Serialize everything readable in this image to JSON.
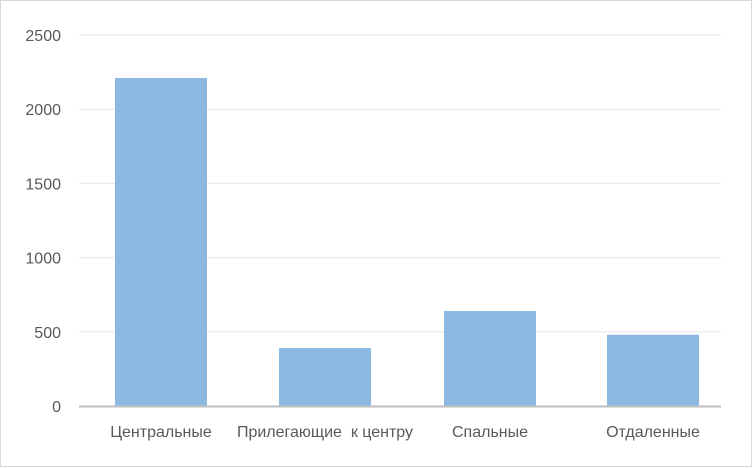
{
  "chart_data": {
    "type": "bar",
    "title": "",
    "xlabel": "",
    "ylabel": "",
    "categories": [
      "Центральные",
      "Прилегающие  к центру",
      "Спальные",
      "Отдаленные"
    ],
    "values": [
      2210,
      390,
      640,
      480
    ],
    "ylim": [
      0,
      2500
    ],
    "yticks": [
      0,
      500,
      1000,
      1500,
      2000,
      2500
    ],
    "grid": true,
    "legend": "none",
    "colors": {
      "bar": "#8db8e2",
      "grid": "#e6e6e6",
      "axis": "#bfbfbf",
      "text": "#595959"
    }
  }
}
